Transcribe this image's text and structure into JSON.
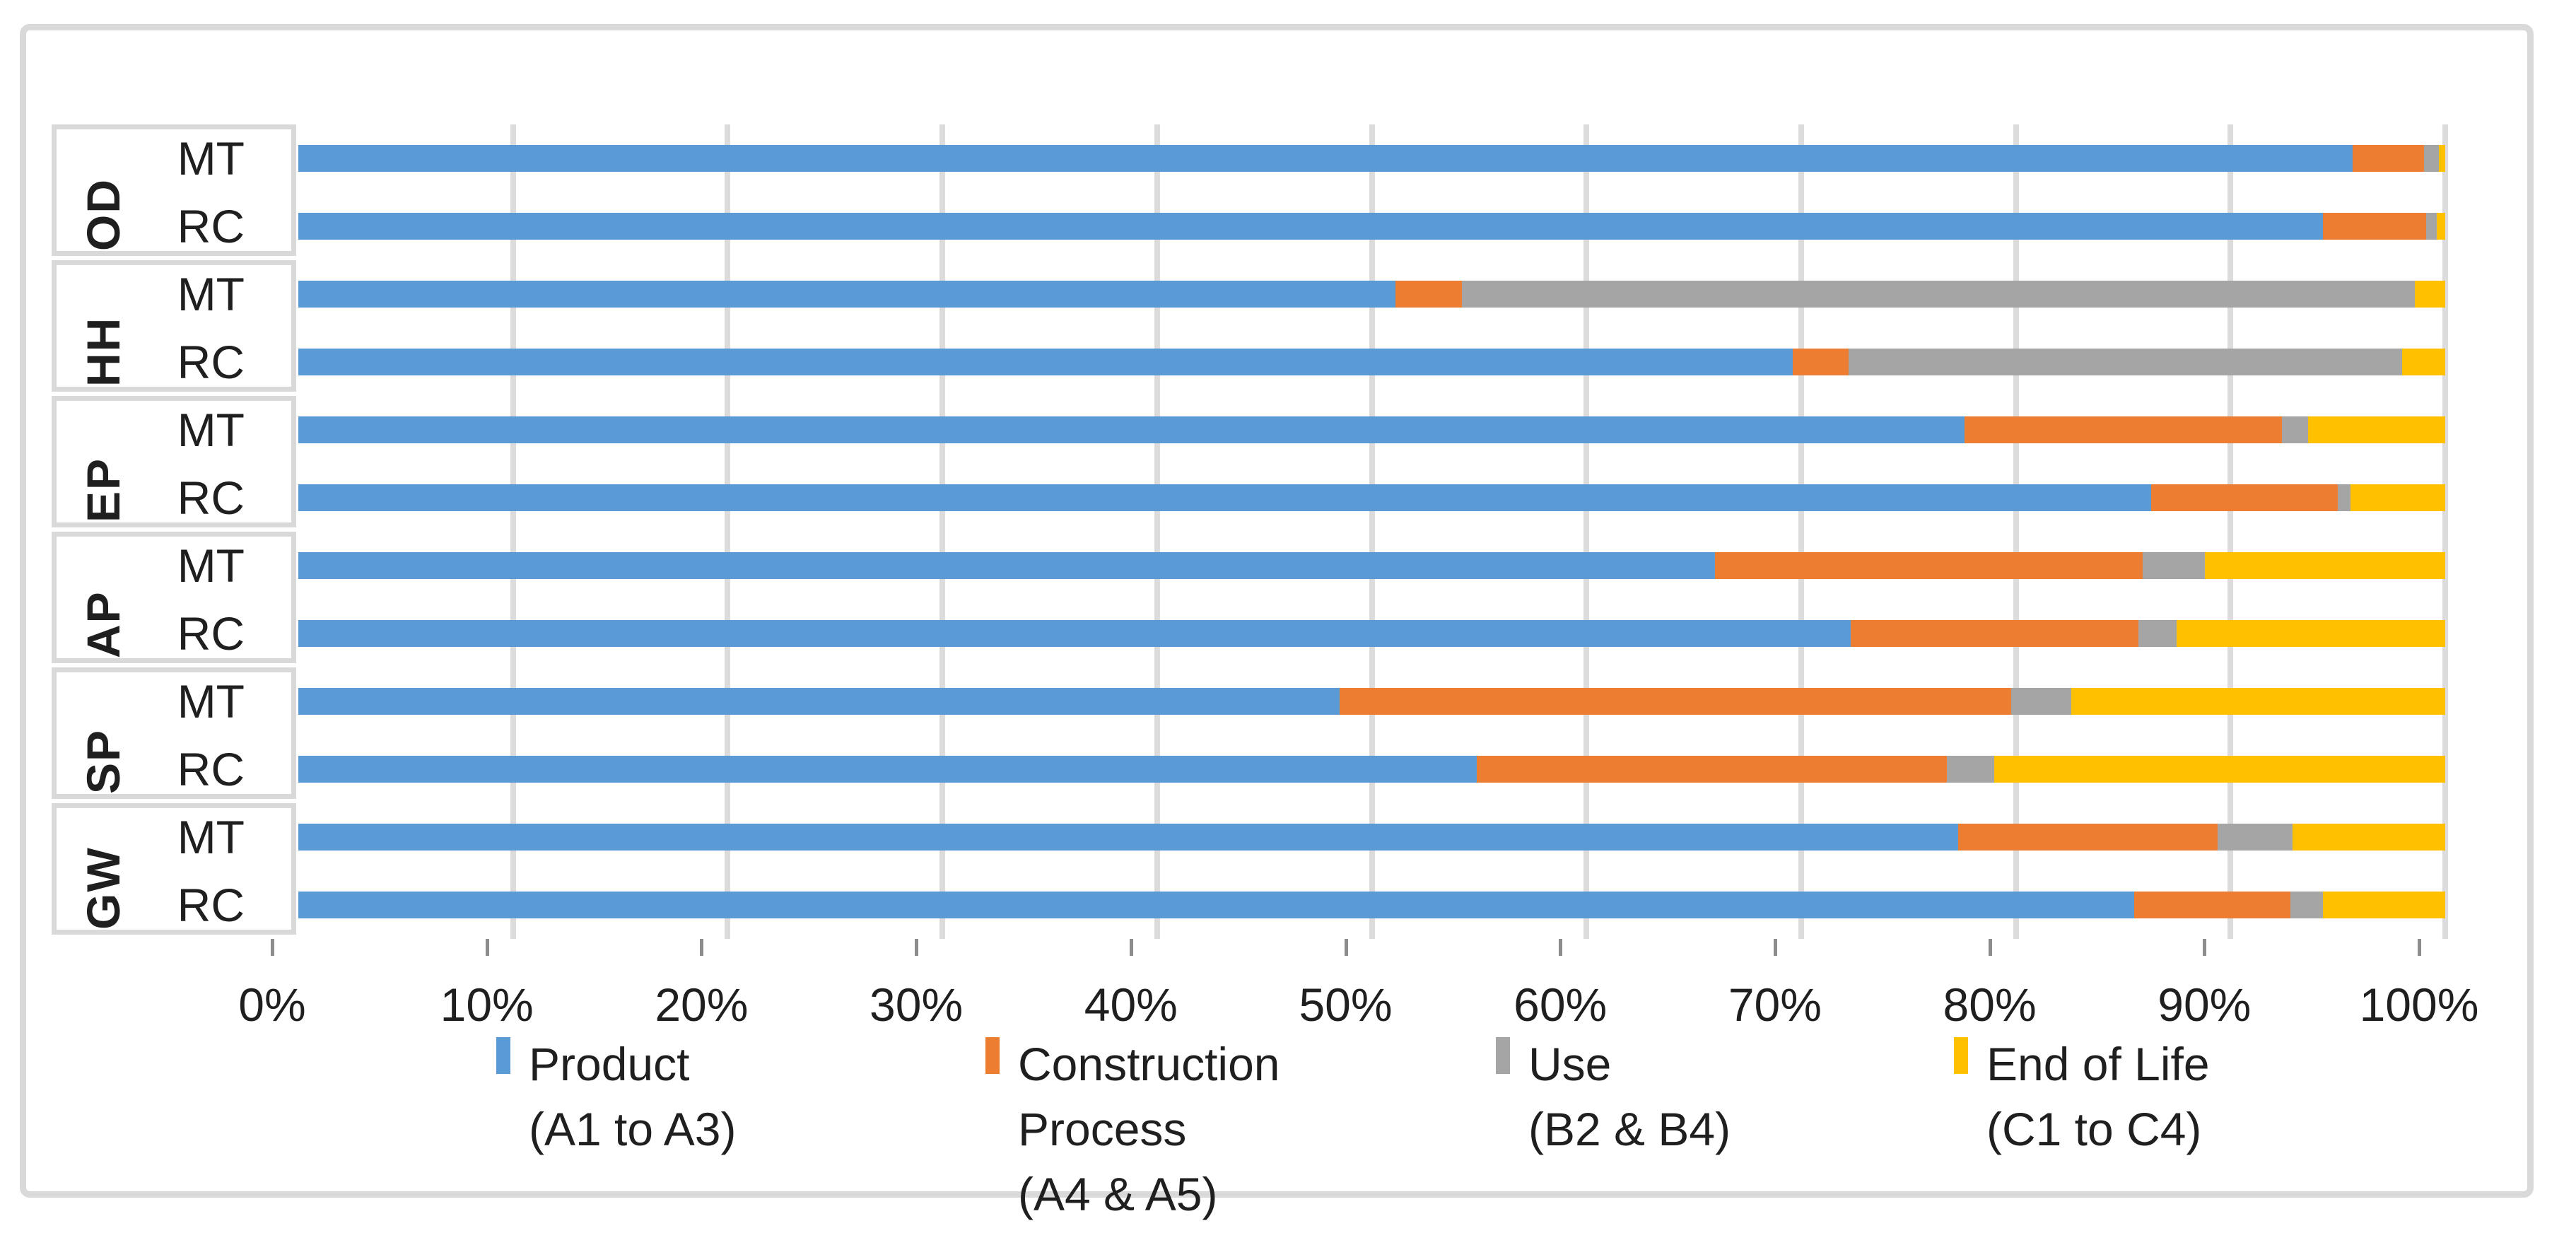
{
  "chart_data": {
    "type": "bar",
    "orientation": "horizontal",
    "stacked": true,
    "title": "",
    "xlabel": "",
    "ylabel": "",
    "unit": "percent",
    "x_axis": {
      "range": [
        0,
        100
      ],
      "ticks": [
        "0%",
        "10%",
        "20%",
        "30%",
        "40%",
        "50%",
        "60%",
        "70%",
        "80%",
        "90%",
        "100%"
      ],
      "grid": true
    },
    "groups": [
      "OD",
      "HH",
      "EP",
      "AP",
      "SP",
      "GW"
    ],
    "sub_categories": [
      "MT",
      "RC"
    ],
    "series": [
      {
        "name": "Product (A1 to A3)",
        "legend_lines": [
          "Product",
          "(A1 to A3)"
        ],
        "color": "#5B9BD5"
      },
      {
        "name": "Construction Process (A4 & A5)",
        "legend_lines": [
          "Construction",
          "Process",
          "(A4 & A5)"
        ],
        "color": "#ED7D31"
      },
      {
        "name": "Use (B2 & B4)",
        "legend_lines": [
          "Use",
          "(B2 & B4)"
        ],
        "color": "#A5A5A5"
      },
      {
        "name": "End of Life (C1 to C4)",
        "legend_lines": [
          "End of Life",
          "(C1 to C4)"
        ],
        "color": "#FFC000"
      }
    ],
    "rows": [
      {
        "group": "OD",
        "sub": "MT",
        "values": [
          95.7,
          3.3,
          0.7,
          0.3
        ]
      },
      {
        "group": "OD",
        "sub": "RC",
        "values": [
          94.3,
          4.8,
          0.5,
          0.4
        ]
      },
      {
        "group": "HH",
        "sub": "MT",
        "values": [
          51.1,
          3.1,
          44.4,
          1.4
        ]
      },
      {
        "group": "HH",
        "sub": "RC",
        "values": [
          69.6,
          2.6,
          25.8,
          2.0
        ]
      },
      {
        "group": "EP",
        "sub": "MT",
        "values": [
          77.6,
          14.8,
          1.2,
          6.4
        ]
      },
      {
        "group": "EP",
        "sub": "RC",
        "values": [
          86.3,
          8.7,
          0.6,
          4.4
        ]
      },
      {
        "group": "AP",
        "sub": "MT",
        "values": [
          66.0,
          19.9,
          2.9,
          11.2
        ]
      },
      {
        "group": "AP",
        "sub": "RC",
        "values": [
          72.3,
          13.4,
          1.8,
          12.5
        ]
      },
      {
        "group": "SP",
        "sub": "MT",
        "values": [
          48.5,
          31.3,
          2.8,
          17.4
        ]
      },
      {
        "group": "SP",
        "sub": "RC",
        "values": [
          54.9,
          21.9,
          2.2,
          21.0
        ]
      },
      {
        "group": "GW",
        "sub": "MT",
        "values": [
          77.3,
          12.1,
          3.5,
          7.1
        ]
      },
      {
        "group": "GW",
        "sub": "RC",
        "values": [
          85.5,
          7.3,
          1.5,
          5.7
        ]
      }
    ],
    "legend_position": "bottom",
    "colors": {
      "grid": "#DCDCDC",
      "frame_border": "#D9D9D9",
      "tick": "#8C8C8C",
      "text": "#1F1F1F",
      "background": "#FFFFFF"
    }
  }
}
